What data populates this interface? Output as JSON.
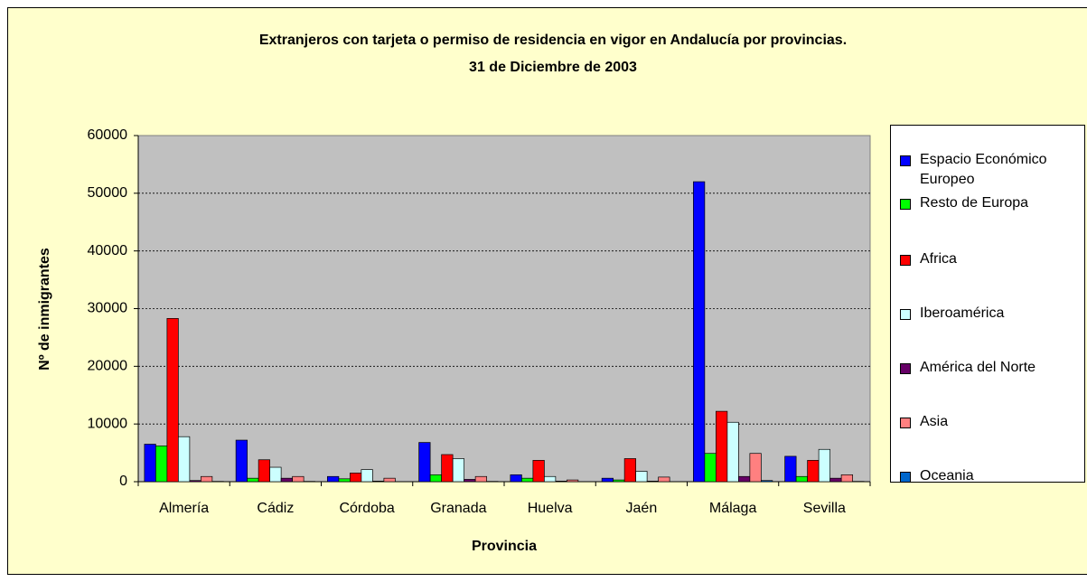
{
  "chart_data": {
    "type": "bar",
    "title": "Extranjeros con tarjeta o permiso de residencia en vigor en Andalucía por provincias.",
    "subtitle": "31 de Diciembre de 2003",
    "x_label": "Provincia",
    "y_label": "Nº de inmigrantes",
    "categories": [
      "Almería",
      "Cádiz",
      "Córdoba",
      "Granada",
      "Huelva",
      "Jaén",
      "Málaga",
      "Sevilla"
    ],
    "series": [
      {
        "name": "Espacio Económico Europeo",
        "color": "#0000ff",
        "values": [
          6500,
          7200,
          900,
          6800,
          1200,
          600,
          52000,
          4400
        ]
      },
      {
        "name": "Resto de Europa",
        "color": "#00ff00",
        "values": [
          6200,
          600,
          500,
          1200,
          600,
          300,
          4900,
          900
        ]
      },
      {
        "name": "Africa",
        "color": "#ff0000",
        "values": [
          28300,
          3800,
          1500,
          4700,
          3700,
          4000,
          12200,
          3700
        ]
      },
      {
        "name": "Iberoamérica",
        "color": "#ccffff",
        "values": [
          7800,
          2500,
          2100,
          4000,
          900,
          1800,
          10300,
          5600
        ]
      },
      {
        "name": "América del Norte",
        "color": "#660066",
        "values": [
          200,
          600,
          100,
          400,
          100,
          100,
          900,
          600
        ]
      },
      {
        "name": "Asia",
        "color": "#ff8080",
        "values": [
          900,
          900,
          600,
          900,
          300,
          800,
          4900,
          1200
        ]
      },
      {
        "name": "Oceania",
        "color": "#0066cc",
        "values": [
          50,
          50,
          20,
          50,
          10,
          10,
          200,
          50
        ]
      }
    ],
    "ylim": [
      0,
      60000
    ],
    "yticks": [
      0,
      10000,
      20000,
      30000,
      40000,
      50000,
      60000
    ],
    "grid": true,
    "legend": "right"
  }
}
